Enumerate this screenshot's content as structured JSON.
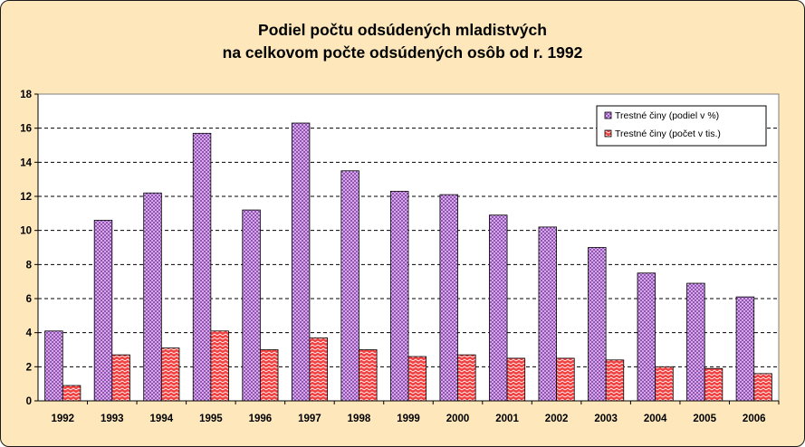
{
  "chart_data": {
    "type": "bar",
    "title": "Podiel počtu odsúdených mladistvých",
    "subtitle": "na celkovom počte odsúdených osôb od r. 1992",
    "categories": [
      "1992",
      "1993",
      "1994",
      "1995",
      "1996",
      "1997",
      "1998",
      "1999",
      "2000",
      "2001",
      "2002",
      "2003",
      "2004",
      "2005",
      "2006"
    ],
    "series": [
      {
        "name": "Trestné činy (podiel v %)",
        "values": [
          4.1,
          10.6,
          12.2,
          15.7,
          11.2,
          16.3,
          13.5,
          12.3,
          12.1,
          10.9,
          10.2,
          9.0,
          7.5,
          6.9,
          6.1
        ]
      },
      {
        "name": "Trestné činy (počet v tis.)",
        "values": [
          0.9,
          2.7,
          3.1,
          4.1,
          3.0,
          3.7,
          3.0,
          2.6,
          2.7,
          2.5,
          2.5,
          2.4,
          2.0,
          1.9,
          1.6
        ]
      }
    ],
    "xlabel": "",
    "ylabel": "",
    "ylim": [
      0,
      18
    ],
    "yticks": [
      0,
      2,
      4,
      6,
      8,
      10,
      12,
      14,
      16,
      18
    ],
    "grid": true,
    "legend_position": "top-right"
  }
}
